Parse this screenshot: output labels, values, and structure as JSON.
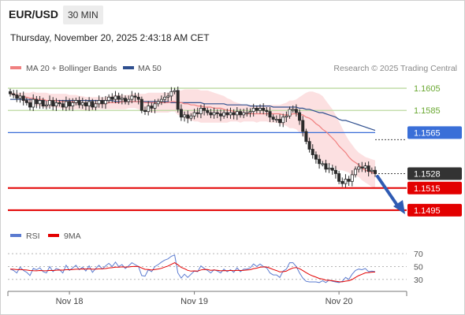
{
  "header": {
    "pair": "EUR/USD",
    "timeframe": "30 MIN",
    "timestamp": "Thursday, November 20, 2025 2:43:18 AM CET"
  },
  "legend": {
    "ma20_label": "MA 20 + Bollinger Bands",
    "ma50_label": "MA 50",
    "credit": "Research © 2025 Trading Central"
  },
  "rsi_legend": {
    "rsi_label": "RSI",
    "ma9_label": "9MA"
  },
  "colors": {
    "up_candle": "#ffffff",
    "down_candle": "#2b2b2b",
    "ma20": "#f08080",
    "ma50": "#2f4f8f",
    "bollinger_fill": "#fbd5d7",
    "support_line": "#e30000",
    "pivot_line": "#3a6fd8",
    "resistance_line": "#bcd9a0",
    "resistance_label": "#6aa832",
    "arrow": "#2f5bb3",
    "rsi": "#5b7bd0",
    "rsi_ma": "#e30000",
    "current_price_label_bg": "#333333"
  },
  "chart_data": [
    {
      "type": "candlestick",
      "title": "EUR/USD 30 MIN",
      "x_ticks": [
        "Nov 18",
        "Nov 19",
        "Nov 20"
      ],
      "ylim": [
        1.1485,
        1.1615
      ],
      "levels": [
        {
          "value": 1.1605,
          "label": "1.1605",
          "kind": "resistance"
        },
        {
          "value": 1.1585,
          "label": "1.1585",
          "kind": "resistance"
        },
        {
          "value": 1.1565,
          "label": "1.1565",
          "kind": "pivot"
        },
        {
          "value": 1.1528,
          "label": "1.1528",
          "kind": "current"
        },
        {
          "value": 1.1515,
          "label": "1.1515",
          "kind": "support"
        },
        {
          "value": 1.1495,
          "label": "1.1495",
          "kind": "support"
        }
      ],
      "close": [
        1.16,
        1.1599,
        1.1596,
        1.1598,
        1.1594,
        1.1592,
        1.1588,
        1.1595,
        1.1591,
        1.1594,
        1.1589,
        1.159,
        1.1594,
        1.1589,
        1.1592,
        1.1591,
        1.1588,
        1.1593,
        1.1589,
        1.1592,
        1.1594,
        1.159,
        1.1592,
        1.1589,
        1.1593,
        1.1588,
        1.1591,
        1.1594,
        1.1591,
        1.1594,
        1.1597,
        1.1595,
        1.1598,
        1.1595,
        1.1596,
        1.1593,
        1.1595,
        1.1598,
        1.1597,
        1.1595,
        1.1585,
        1.1584,
        1.1589,
        1.1587,
        1.1591,
        1.1593,
        1.1595,
        1.1597,
        1.1598,
        1.1602,
        1.1603,
        1.1586,
        1.1579,
        1.1581,
        1.1578,
        1.158,
        1.1583,
        1.1582,
        1.1587,
        1.1585,
        1.1583,
        1.1581,
        1.1583,
        1.1582,
        1.158,
        1.1583,
        1.1581,
        1.1583,
        1.1581,
        1.1584,
        1.1581,
        1.1583,
        1.1583,
        1.1584,
        1.1587,
        1.1585,
        1.1587,
        1.1585,
        1.1584,
        1.1579,
        1.1577,
        1.1577,
        1.1574,
        1.1579,
        1.158,
        1.1586,
        1.1586,
        1.1583,
        1.1576,
        1.1566,
        1.1557,
        1.155,
        1.1545,
        1.1541,
        1.1537,
        1.1537,
        1.1532,
        1.1533,
        1.1531,
        1.1528,
        1.1521,
        1.1519,
        1.1523,
        1.1521,
        1.1527,
        1.1532,
        1.1534,
        1.1533,
        1.1535,
        1.153,
        1.1531,
        1.1528
      ],
      "ma20": [
        1.16,
        1.16,
        1.1598,
        1.1598,
        1.1597,
        1.1597,
        1.1596,
        1.1596,
        1.1595,
        1.1595,
        1.1595,
        1.1594,
        1.1594,
        1.1594,
        1.1594,
        1.1593,
        1.1593,
        1.1593,
        1.1593,
        1.1593,
        1.1592,
        1.1592,
        1.1591,
        1.1591,
        1.1591,
        1.1591,
        1.1591,
        1.1591,
        1.1591,
        1.1591,
        1.1592,
        1.1592,
        1.1592,
        1.1592,
        1.1593,
        1.1593,
        1.1593,
        1.1593,
        1.1593,
        1.1593,
        1.1593,
        1.1592,
        1.1592,
        1.1592,
        1.1592,
        1.1592,
        1.1592,
        1.1592,
        1.1592,
        1.1593,
        1.1593,
        1.1592,
        1.1592,
        1.1591,
        1.1591,
        1.159,
        1.159,
        1.1589,
        1.1589,
        1.1588,
        1.1588,
        1.1588,
        1.1587,
        1.1587,
        1.1587,
        1.1586,
        1.1585,
        1.1585,
        1.1584,
        1.1583,
        1.1582,
        1.1582,
        1.1582,
        1.1582,
        1.1582,
        1.1582,
        1.1582,
        1.1582,
        1.1582,
        1.1582,
        1.1582,
        1.1582,
        1.1582,
        1.1581,
        1.1581,
        1.1581,
        1.1582,
        1.1582,
        1.1581,
        1.1581,
        1.1579,
        1.1578,
        1.1576,
        1.1573,
        1.1571,
        1.1568,
        1.1566,
        1.1563,
        1.156,
        1.1557,
        1.1553,
        1.155,
        1.1547,
        1.1543,
        1.154,
        1.1538,
        1.1536,
        1.1533,
        1.1531,
        1.153,
        1.1529,
        1.1528
      ],
      "bb_upper": [
        1.1601,
        1.1601,
        1.1601,
        1.1601,
        1.1601,
        1.1601,
        1.1601,
        1.1602,
        1.1601,
        1.1601,
        1.1601,
        1.1601,
        1.16,
        1.16,
        1.16,
        1.16,
        1.16,
        1.16,
        1.1599,
        1.1599,
        1.1599,
        1.1598,
        1.1598,
        1.1597,
        1.1597,
        1.1597,
        1.1597,
        1.1597,
        1.1597,
        1.1597,
        1.1598,
        1.1598,
        1.1599,
        1.1599,
        1.1599,
        1.1599,
        1.1599,
        1.16,
        1.16,
        1.16,
        1.16,
        1.16,
        1.1601,
        1.1601,
        1.1601,
        1.1601,
        1.1601,
        1.1601,
        1.1601,
        1.1602,
        1.1603,
        1.1603,
        1.1603,
        1.1604,
        1.1604,
        1.1604,
        1.1604,
        1.1604,
        1.1603,
        1.1603,
        1.1603,
        1.1602,
        1.1601,
        1.16,
        1.1599,
        1.1598,
        1.1596,
        1.1595,
        1.1593,
        1.1592,
        1.1591,
        1.159,
        1.159,
        1.159,
        1.159,
        1.1589,
        1.159,
        1.159,
        1.159,
        1.159,
        1.159,
        1.159,
        1.159,
        1.1591,
        1.1592,
        1.1594,
        1.1594,
        1.1595,
        1.1597,
        1.1599,
        1.1601,
        1.1602,
        1.1602,
        1.1601,
        1.16,
        1.1598,
        1.1594,
        1.159,
        1.1586,
        1.1581,
        1.1575,
        1.1569,
        1.1563,
        1.1558,
        1.1554,
        1.155,
        1.1547,
        1.1545,
        1.1543,
        1.1542,
        1.1541,
        1.154
      ],
      "bb_lower": [
        1.1599,
        1.1598,
        1.1596,
        1.1595,
        1.1593,
        1.1592,
        1.159,
        1.159,
        1.1589,
        1.1589,
        1.1588,
        1.1587,
        1.1588,
        1.1588,
        1.1587,
        1.1587,
        1.1586,
        1.1586,
        1.1586,
        1.1586,
        1.1586,
        1.1586,
        1.1585,
        1.1585,
        1.1585,
        1.1585,
        1.1586,
        1.1586,
        1.1586,
        1.1586,
        1.1586,
        1.1586,
        1.1586,
        1.1586,
        1.1586,
        1.1586,
        1.1587,
        1.1587,
        1.1587,
        1.1586,
        1.1585,
        1.1584,
        1.1583,
        1.1583,
        1.1583,
        1.1583,
        1.1583,
        1.1583,
        1.1583,
        1.1584,
        1.1584,
        1.1581,
        1.158,
        1.1578,
        1.1577,
        1.1576,
        1.1575,
        1.1575,
        1.1574,
        1.1574,
        1.1574,
        1.1574,
        1.1574,
        1.1574,
        1.1574,
        1.1574,
        1.1574,
        1.1575,
        1.1575,
        1.1575,
        1.1574,
        1.1575,
        1.1575,
        1.1575,
        1.1575,
        1.1574,
        1.1575,
        1.1575,
        1.1575,
        1.1574,
        1.1574,
        1.1574,
        1.1573,
        1.1572,
        1.1571,
        1.1569,
        1.1569,
        1.1568,
        1.1565,
        1.1563,
        1.1558,
        1.1553,
        1.1549,
        1.1545,
        1.1541,
        1.1538,
        1.1537,
        1.1536,
        1.1535,
        1.1532,
        1.1531,
        1.1531,
        1.153,
        1.1529,
        1.1526,
        1.1526,
        1.1525,
        1.1522,
        1.152,
        1.1518,
        1.1516,
        1.1515
      ],
      "ma50": [
        1.1595,
        1.1595,
        1.1595,
        1.1595,
        1.1595,
        1.1595,
        1.1595,
        1.1595,
        1.1594,
        1.1594,
        1.1594,
        1.1594,
        1.1594,
        1.1594,
        1.1594,
        1.1594,
        1.1594,
        1.1594,
        1.1594,
        1.1594,
        1.1594,
        1.1594,
        1.1594,
        1.1594,
        1.1594,
        1.1594,
        1.1594,
        1.1594,
        1.1594,
        1.1594,
        1.1594,
        1.1594,
        1.1593,
        1.1593,
        1.1593,
        1.1593,
        1.1593,
        1.1593,
        1.1593,
        1.1593,
        1.1593,
        1.1593,
        1.1593,
        1.1593,
        1.1593,
        1.1593,
        1.1593,
        1.1593,
        1.1593,
        1.1592,
        1.1592,
        1.1592,
        1.1592,
        1.1592,
        1.1592,
        1.1592,
        1.1592,
        1.1592,
        1.1592,
        1.1591,
        1.1591,
        1.1591,
        1.1591,
        1.1591,
        1.1591,
        1.1591,
        1.159,
        1.159,
        1.159,
        1.159,
        1.159,
        1.159,
        1.159,
        1.1589,
        1.1589,
        1.1589,
        1.1589,
        1.1589,
        1.1589,
        1.1589,
        1.1588,
        1.1588,
        1.1588,
        1.1588,
        1.1588,
        1.1588,
        1.1588,
        1.1588,
        1.1587,
        1.1587,
        1.1586,
        1.1586,
        1.1585,
        1.1584,
        1.1583,
        1.1583,
        1.1582,
        1.1581,
        1.158,
        1.1579,
        1.1577,
        1.1576,
        1.1576,
        1.1575,
        1.1574,
        1.1573,
        1.1572,
        1.1571,
        1.157,
        1.1569,
        1.1568,
        1.1567
      ]
    },
    {
      "type": "line",
      "title": "RSI",
      "y_ticks": [
        "70",
        "50",
        "30"
      ],
      "ylim": [
        15,
        80
      ],
      "rsi": [
        46,
        44,
        40,
        49,
        44,
        41,
        36,
        47,
        45,
        48,
        42,
        40,
        50,
        42,
        47,
        45,
        40,
        52,
        44,
        48,
        52,
        45,
        49,
        43,
        51,
        41,
        47,
        52,
        46,
        51,
        55,
        50,
        57,
        50,
        53,
        47,
        51,
        56,
        53,
        50,
        36,
        35,
        45,
        42,
        50,
        53,
        57,
        60,
        62,
        66,
        68,
        40,
        32,
        38,
        33,
        38,
        43,
        42,
        51,
        47,
        44,
        40,
        45,
        43,
        40,
        46,
        42,
        45,
        41,
        48,
        42,
        46,
        46,
        48,
        54,
        50,
        54,
        50,
        48,
        40,
        37,
        37,
        33,
        43,
        46,
        56,
        56,
        50,
        40,
        32,
        27,
        26,
        26,
        26,
        25,
        28,
        25,
        29,
        27,
        26,
        25,
        27,
        33,
        30,
        38,
        44,
        46,
        45,
        47,
        42,
        43,
        42
      ],
      "rsi_ma": [
        46,
        45.8,
        45.2,
        45.3,
        44.9,
        44.5,
        43.8,
        43.4,
        43.3,
        43.8,
        43.5,
        43.3,
        43.9,
        43.8,
        44.3,
        44.6,
        44.4,
        45.1,
        45,
        45.4,
        45.8,
        46,
        46.3,
        46.1,
        46.4,
        45.8,
        45.9,
        46.4,
        46.5,
        46.9,
        47.9,
        48.2,
        49,
        49.1,
        49.5,
        49.2,
        49.3,
        50,
        50.2,
        50.1,
        47.7,
        45.7,
        45.3,
        44.6,
        45.4,
        46.2,
        47.3,
        49.1,
        50.8,
        53.4,
        56,
        52.8,
        48.6,
        46.7,
        44.1,
        42.9,
        43.2,
        42.9,
        44.7,
        45.5,
        45.3,
        44.2,
        44.5,
        44.2,
        43.3,
        43.7,
        43.5,
        43.9,
        43.5,
        44.2,
        43.8,
        44.2,
        44.5,
        45,
        46.8,
        47.5,
        49,
        49.4,
        49.3,
        47.5,
        45.4,
        43.7,
        41.6,
        42,
        42.8,
        45.6,
        47.7,
        48.5,
        46.7,
        43.7,
        40.5,
        37.6,
        35.3,
        33.5,
        31.4,
        30.5,
        28.9,
        28.5,
        27.9,
        27.2,
        26.3,
        26.1,
        27.3,
        27.9,
        29.9,
        33,
        35.8,
        37.9,
        40.2,
        40.6,
        41.2,
        41.5
      ]
    }
  ]
}
